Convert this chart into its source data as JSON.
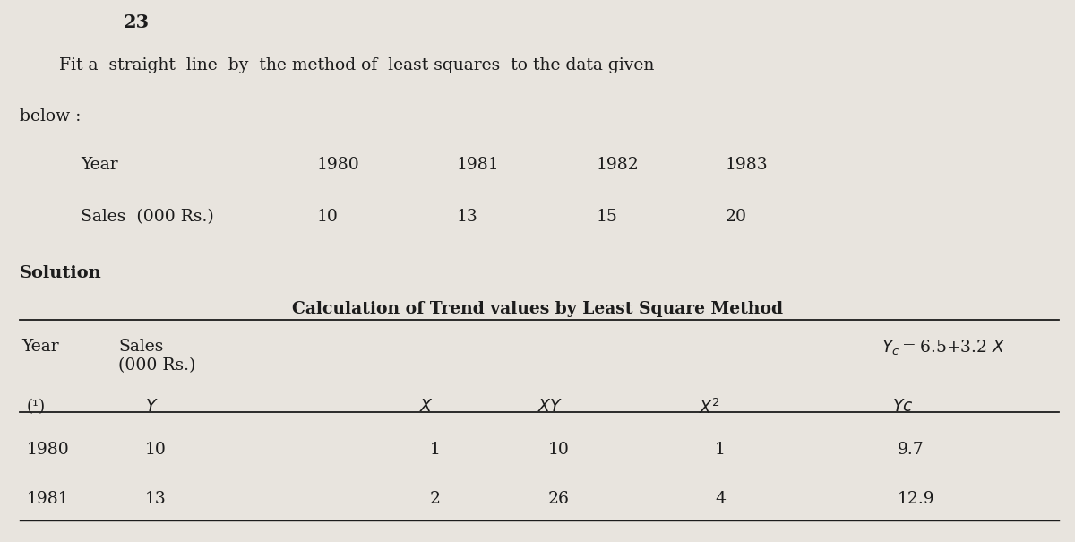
{
  "bg_color": "#e8e4de",
  "title_number": "23",
  "intro_line1": "Fit a  straight  line  by  the method of  least squares  to the data given",
  "intro_line2": "below :",
  "data_header_year": "Year",
  "data_header_sales": "Sales  (000 Rs.)",
  "years": [
    "1980",
    "1981",
    "1982",
    "1983"
  ],
  "sales": [
    "10",
    "13",
    "15",
    "20"
  ],
  "solution_label": "Solution",
  "calc_title": "Calculation of Trend values by Least Square Method",
  "table_rows": [
    [
      "1980",
      "10",
      "1",
      "10",
      "1",
      "9.7"
    ],
    [
      "1981",
      "13",
      "2",
      "26",
      "4",
      "12.9"
    ]
  ],
  "font_color": "#1c1c1c"
}
